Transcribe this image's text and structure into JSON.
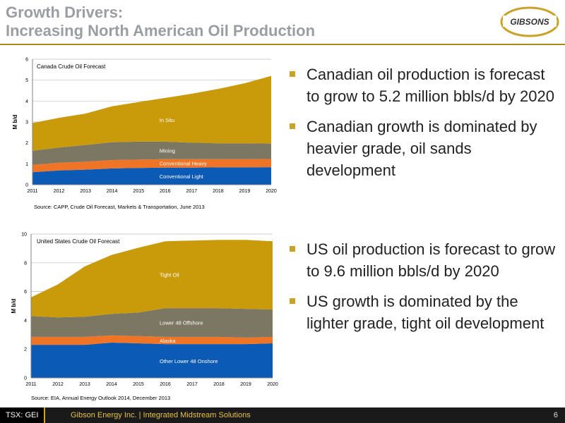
{
  "title": {
    "line1": "Growth Drivers:",
    "line2": "Increasing North American Oil Production"
  },
  "logo": {
    "text": "GIBSONS"
  },
  "colors": {
    "title": "#9a9ea3",
    "accent": "#c9a227",
    "conventional_light": "#0b5ab6",
    "conventional_heavy": "#f07426",
    "mining": "#7b7763",
    "in_situ": "#c99a0a"
  },
  "chart_data": [
    {
      "type": "area",
      "title": "Canada Crude Oil Forecast",
      "ylabel": "M b/d",
      "xlabel": "",
      "x": [
        2011,
        2012,
        2013,
        2014,
        2015,
        2016,
        2017,
        2018,
        2019,
        2020
      ],
      "ylim": [
        0,
        6
      ],
      "yticks": [
        0,
        1,
        2,
        3,
        4,
        5,
        6
      ],
      "stacked": true,
      "series": [
        {
          "name": "Conventional Light",
          "color": "#0b5ab6",
          "values": [
            0.6,
            0.68,
            0.72,
            0.78,
            0.8,
            0.82,
            0.82,
            0.83,
            0.83,
            0.84
          ]
        },
        {
          "name": "Conventional Heavy",
          "color": "#f07426",
          "values": [
            0.35,
            0.37,
            0.38,
            0.4,
            0.4,
            0.4,
            0.4,
            0.39,
            0.39,
            0.39
          ]
        },
        {
          "name": "Mining",
          "color": "#7b7763",
          "values": [
            0.67,
            0.73,
            0.8,
            0.85,
            0.86,
            0.84,
            0.79,
            0.76,
            0.76,
            0.74
          ]
        },
        {
          "name": "In Situ",
          "color": "#c99a0a",
          "values": [
            1.33,
            1.42,
            1.5,
            1.72,
            1.89,
            2.09,
            2.34,
            2.6,
            2.87,
            3.23
          ]
        }
      ],
      "grid": true,
      "source": "Source: CAPP, Crude Oil Forecast, Markets & Transportation, June 2013"
    },
    {
      "type": "area",
      "title": "United States Crude Oil Forecast",
      "ylabel": "M b/d",
      "xlabel": "",
      "x": [
        2011,
        2012,
        2013,
        2014,
        2015,
        2016,
        2017,
        2018,
        2019,
        2020
      ],
      "ylim": [
        0,
        10
      ],
      "yticks": [
        0,
        2,
        4,
        6,
        8,
        10
      ],
      "stacked": true,
      "series": [
        {
          "name": "Other Lower 48 Onshore",
          "color": "#0b5ab6",
          "values": [
            2.3,
            2.3,
            2.3,
            2.45,
            2.4,
            2.35,
            2.35,
            2.35,
            2.35,
            2.4
          ]
        },
        {
          "name": "Alaska",
          "color": "#f07426",
          "values": [
            0.55,
            0.55,
            0.55,
            0.5,
            0.5,
            0.5,
            0.5,
            0.5,
            0.45,
            0.45
          ]
        },
        {
          "name": "Lower 48 Offshore",
          "color": "#7b7763",
          "values": [
            1.45,
            1.35,
            1.4,
            1.5,
            1.65,
            2.0,
            2.0,
            2.0,
            2.0,
            1.9
          ]
        },
        {
          "name": "Tight Oil",
          "color": "#c99a0a",
          "values": [
            1.3,
            2.3,
            3.5,
            4.1,
            4.5,
            4.65,
            4.7,
            4.75,
            4.8,
            4.75
          ]
        }
      ],
      "grid": true,
      "source": "Source: EIA, Annual Energy Outlook 2014,  December 2013"
    }
  ],
  "bullets": {
    "canada": [
      "Canadian oil production is forecast to grow to 5.2 million bbls/d by 2020",
      "Canadian growth is dominated by heavier grade, oil sands development"
    ],
    "us": [
      "US oil production is forecast to grow to 9.6 million bbls/d by 2020",
      "US growth is dominated by the lighter grade, tight oil development"
    ]
  },
  "footer": {
    "ticker": "TSX: GEI",
    "company": "Gibson Energy Inc.   |   Integrated Midstream Solutions",
    "page": "6"
  }
}
